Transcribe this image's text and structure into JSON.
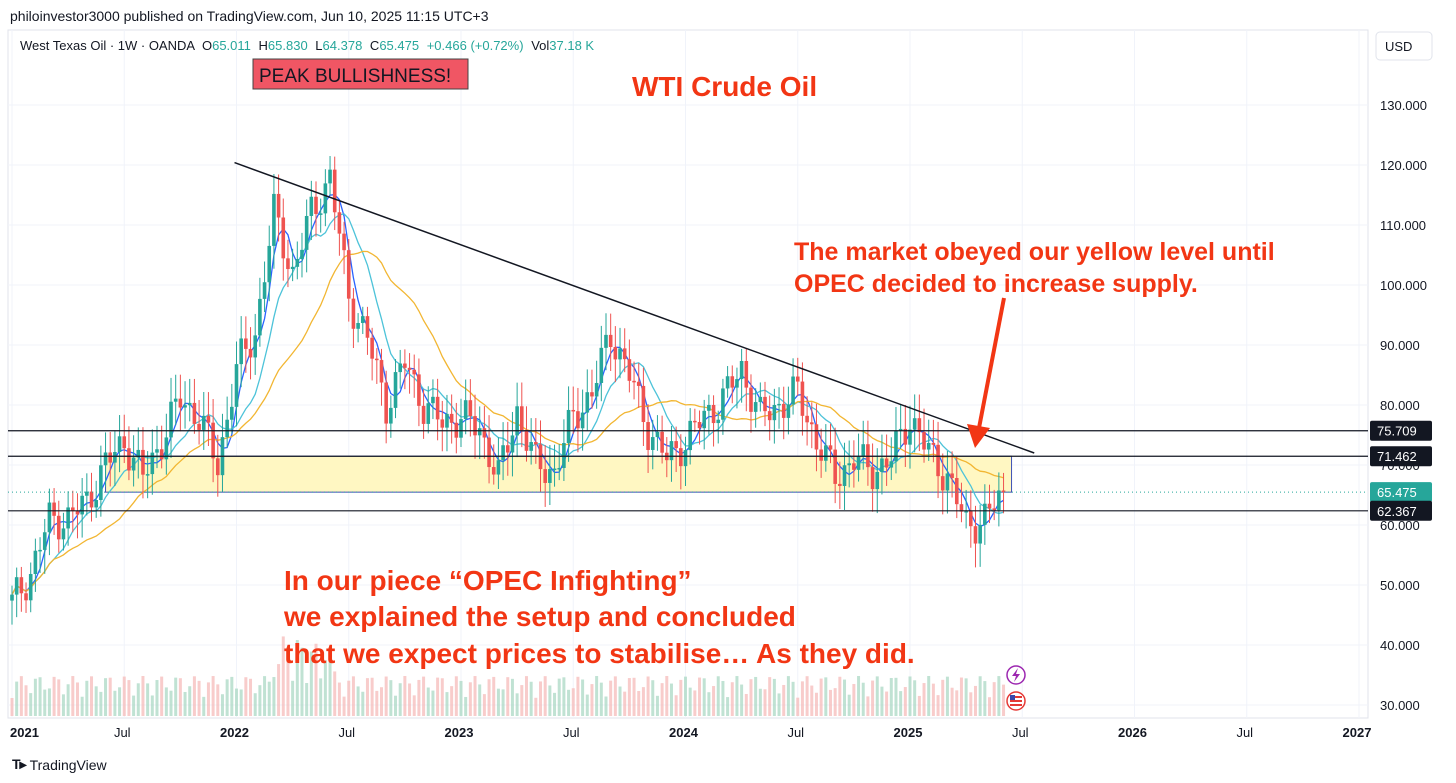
{
  "header": {
    "publisher": "philoinvestor3000 published on TradingView.com, Jun 10, 2025 11:15 UTC+3"
  },
  "legend": {
    "symbol": "West Texas Oil · 1W · OANDA",
    "o_label": "O",
    "o_value": "65.011",
    "h_label": "H",
    "h_value": "65.830",
    "l_label": "L",
    "l_value": "64.378",
    "c_label": "C",
    "c_value": "65.475",
    "change": "+0.466 (+0.72%)",
    "vol_label": "Vol",
    "vol_value": "37.18 K"
  },
  "currency_button": "USD",
  "footer": {
    "logo_text": "TradingView"
  },
  "colors": {
    "up": "#26a69a",
    "down": "#ef5350",
    "annotation": "#f23614",
    "ma_fast": "#2962ff",
    "ma_mid": "#4dc3d9",
    "ma_slow": "#f2b632",
    "zone": "#fff7c2"
  },
  "chart_data": {
    "type": "candlestick",
    "title": "WTI Crude Oil",
    "x_axis": {
      "labels": [
        "2021",
        "Jul",
        "2022",
        "Jul",
        "2023",
        "Jul",
        "2024",
        "Jul",
        "2025",
        "Jul",
        "2026",
        "Jul",
        "2027"
      ],
      "range": [
        "2021-01",
        "2027-01"
      ]
    },
    "y_axis": {
      "ticks": [
        "30.000",
        "40.000",
        "50.000",
        "60.000",
        "70.000",
        "80.000",
        "90.000",
        "100.000",
        "110.000",
        "120.000",
        "130.000"
      ],
      "range": [
        27.5,
        135
      ]
    },
    "price_tags": [
      {
        "value": 75.709,
        "label": "75.709"
      },
      {
        "value": 71.462,
        "label": "71.462"
      },
      {
        "value": 65.475,
        "label": "65.475"
      },
      {
        "value": 62.367,
        "label": "62.367"
      }
    ],
    "horizontal_levels": [
      75.709,
      71.462,
      62.367
    ],
    "support_zone": {
      "from": 65.475,
      "to": 71.462,
      "start": "2021-06",
      "end": "2025-06"
    },
    "trendline": {
      "start": {
        "date": "2022-01",
        "value": 120.4
      },
      "end": {
        "date": "2025-07",
        "value": 72
      }
    },
    "weekly_close": [
      [
        "2021-01",
        47
      ],
      [
        "2021-02",
        52
      ],
      [
        "2021-03",
        61
      ],
      [
        "2021-04",
        61
      ],
      [
        "2021-05",
        64
      ],
      [
        "2021-06",
        70
      ],
      [
        "2021-07",
        74
      ],
      [
        "2021-08",
        68
      ],
      [
        "2021-09",
        74
      ],
      [
        "2021-10",
        81
      ],
      [
        "2021-11",
        78
      ],
      [
        "2021-12",
        70
      ],
      [
        "2022-01",
        86
      ],
      [
        "2022-02",
        92
      ],
      [
        "2022-03",
        112
      ],
      [
        "2022-04",
        102
      ],
      [
        "2022-05",
        112
      ],
      [
        "2022-06",
        118
      ],
      [
        "2022-07",
        98
      ],
      [
        "2022-08",
        91
      ],
      [
        "2022-09",
        80
      ],
      [
        "2022-10",
        87
      ],
      [
        "2022-11",
        80
      ],
      [
        "2022-12",
        77
      ],
      [
        "2023-01",
        78
      ],
      [
        "2023-02",
        76
      ],
      [
        "2023-03",
        68
      ],
      [
        "2023-04",
        79
      ],
      [
        "2023-05",
        70
      ],
      [
        "2023-06",
        69
      ],
      [
        "2023-07",
        78
      ],
      [
        "2023-08",
        82
      ],
      [
        "2023-09",
        92
      ],
      [
        "2023-10",
        85
      ],
      [
        "2023-11",
        76
      ],
      [
        "2023-12",
        71
      ],
      [
        "2024-01",
        74
      ],
      [
        "2024-02",
        78
      ],
      [
        "2024-03",
        81
      ],
      [
        "2024-04",
        86
      ],
      [
        "2024-05",
        78
      ],
      [
        "2024-06",
        80
      ],
      [
        "2024-07",
        82
      ],
      [
        "2024-08",
        74
      ],
      [
        "2024-09",
        68
      ],
      [
        "2024-10",
        71
      ],
      [
        "2024-11",
        69
      ],
      [
        "2024-12",
        71
      ],
      [
        "2025-01",
        78
      ],
      [
        "2025-02",
        72
      ],
      [
        "2025-03",
        68
      ],
      [
        "2025-04",
        60
      ],
      [
        "2025-05",
        61
      ],
      [
        "2025-06",
        65.475
      ]
    ],
    "annotations": [
      {
        "text": "PEAK BULLISHNESS!",
        "style": "label-box"
      },
      {
        "text": "The market obeyed our yellow level until",
        "style": "red-text"
      },
      {
        "text": "OPEC decided to increase supply.",
        "style": "red-text"
      },
      {
        "text": "In our piece “OPEC Infighting”",
        "style": "red-text"
      },
      {
        "text": "we explained the setup and concluded",
        "style": "red-text"
      },
      {
        "text": "that we expect prices to stabilise… As they did.",
        "style": "red-text"
      }
    ],
    "grid": true,
    "legend_position": "top-left"
  }
}
